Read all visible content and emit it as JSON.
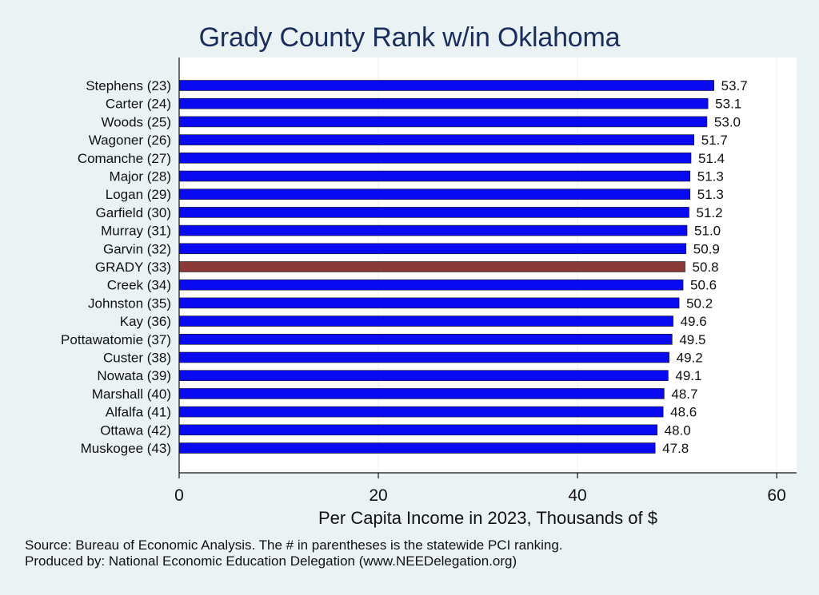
{
  "chart_data": {
    "type": "bar",
    "orientation": "horizontal",
    "title": "Grady County Rank w/in Oklahoma",
    "xlabel": "Per Capita Income in 2023, Thousands of $",
    "xlim": [
      0,
      62
    ],
    "xticks": [
      "0",
      "20",
      "40",
      "60"
    ],
    "grid": true,
    "categories": [
      "Stephens (23)",
      "Carter (24)",
      "Woods (25)",
      "Wagoner (26)",
      "Comanche (27)",
      "Major (28)",
      "Logan (29)",
      "Garfield (30)",
      "Murray (31)",
      "Garvin (32)",
      "GRADY (33)",
      "Creek (34)",
      "Johnston (35)",
      "Kay (36)",
      "Pottawatomie (37)",
      "Custer (38)",
      "Nowata (39)",
      "Marshall (40)",
      "Alfalfa (41)",
      "Ottawa (42)",
      "Muskogee (43)"
    ],
    "values": [
      53.7,
      53.1,
      53.0,
      51.7,
      51.4,
      51.3,
      51.3,
      51.2,
      51.0,
      50.9,
      50.8,
      50.6,
      50.2,
      49.6,
      49.5,
      49.2,
      49.1,
      48.7,
      48.6,
      48.0,
      47.8
    ],
    "value_labels": [
      "53.7",
      "53.1",
      "53.0",
      "51.7",
      "51.4",
      "51.3",
      "51.3",
      "51.2",
      "51.0",
      "50.9",
      "50.8",
      "50.6",
      "50.2",
      "49.6",
      "49.5",
      "49.2",
      "49.1",
      "48.7",
      "48.6",
      "48.0",
      "47.8"
    ],
    "highlight_index": 10,
    "colors": {
      "bar": "#0a0af0",
      "highlight": "#8b3a3a",
      "title": "#1a2d5c",
      "grid": "#ffffff",
      "background": "#eaf2f3"
    }
  },
  "footer": {
    "source_line": "Source: Bureau of Economic Analysis. The # in parentheses is the statewide PCI ranking.",
    "produced_line": "Produced by: National Economic Education Delegation (www.NEEDelegation.org)"
  }
}
